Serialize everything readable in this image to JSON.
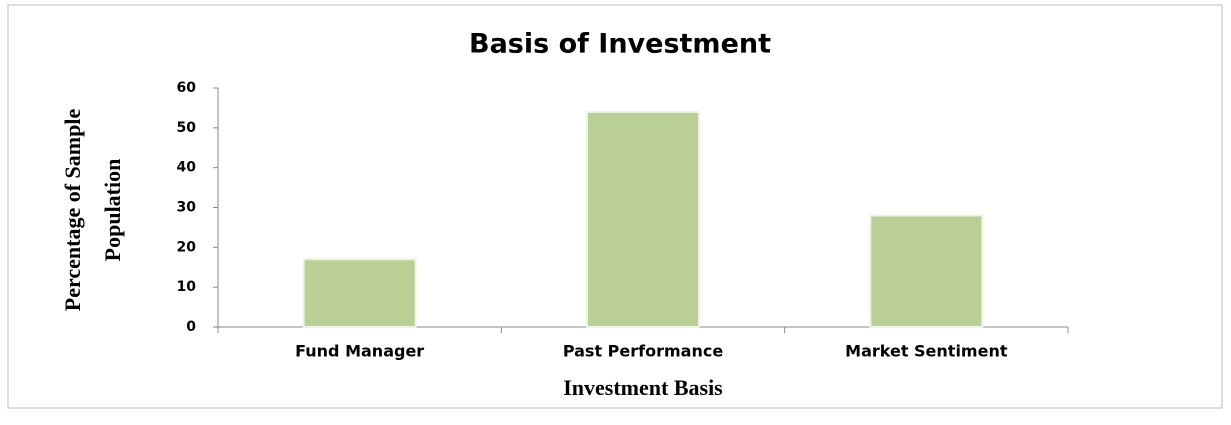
{
  "chart_data": {
    "type": "bar",
    "title": "Basis of Investment",
    "x_label": "Investment Basis",
    "y_label": [
      "Percentage of Sample",
      "Population"
    ],
    "categories": [
      "Fund Manager",
      "Past Performance",
      "Market Sentiment"
    ],
    "values": [
      17,
      54,
      28
    ],
    "color": "#b9cf96",
    "ylim": [
      0,
      60
    ],
    "yticks": [
      0,
      10,
      20,
      30,
      40,
      50,
      60
    ],
    "grid": false
  }
}
